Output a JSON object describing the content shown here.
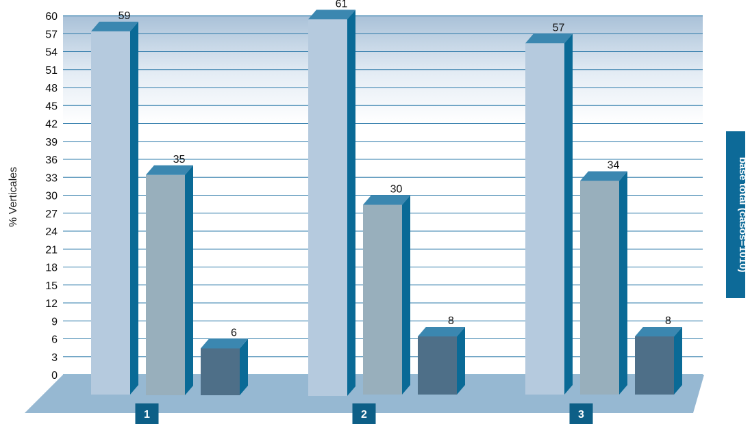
{
  "chart_data": {
    "type": "bar",
    "categories": [
      "1",
      "2",
      "3"
    ],
    "series": [
      {
        "values": [
          59,
          61,
          57
        ]
      },
      {
        "values": [
          35,
          30,
          34
        ]
      },
      {
        "values": [
          6,
          8,
          8
        ]
      }
    ],
    "ylabel": "% Verticales",
    "ylim": [
      0,
      60
    ],
    "yticks": [
      0,
      3,
      6,
      9,
      12,
      15,
      18,
      21,
      24,
      27,
      30,
      33,
      36,
      39,
      42,
      45,
      48,
      51,
      54,
      57,
      60
    ],
    "side_note": "base total (casos=1010)",
    "grid": true,
    "colors": {
      "series_front": [
        "#b5cade",
        "#98afbc",
        "#4e6f88"
      ],
      "bar_side": "#0a6a96",
      "bar_top": "#3b87b0",
      "floor": "#96b8d2",
      "gridline": "#2a78a8",
      "category_box": "#0d5f87",
      "side_note_box": "#0d6a98"
    }
  }
}
